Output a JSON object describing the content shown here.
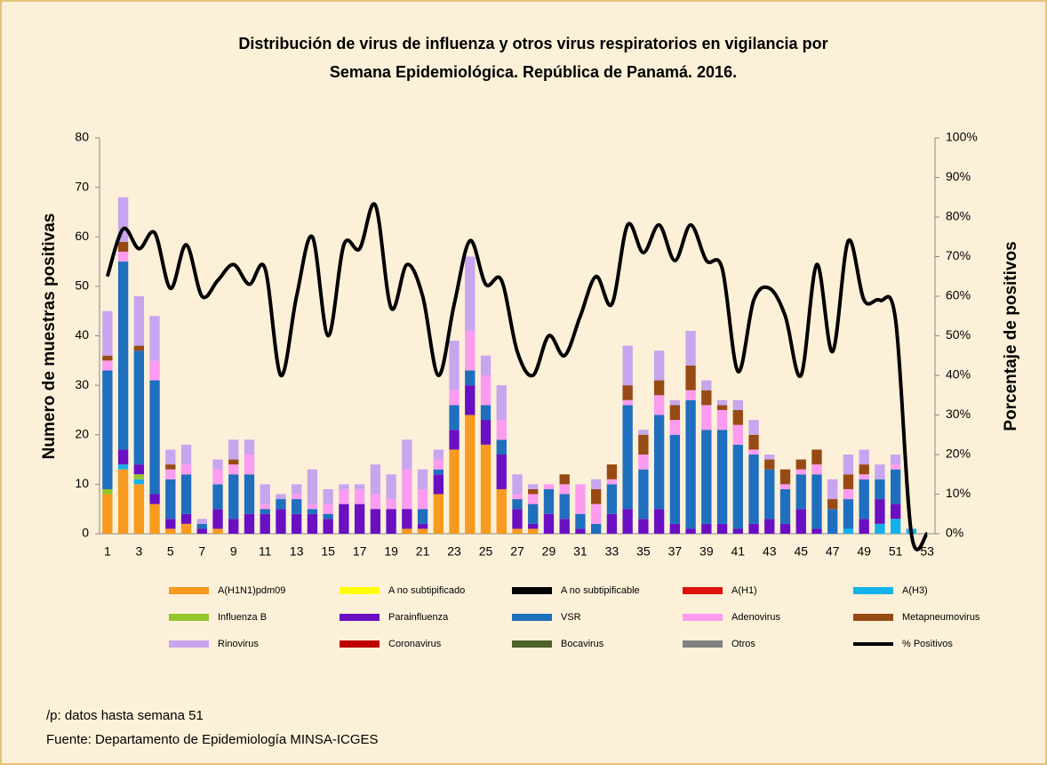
{
  "chart_data": {
    "type": "bar",
    "stacked": true,
    "title": "Distribución de virus de influenza y otros virus respiratorios en vigilancia por",
    "subtitle": "Semana Epidemiológica. República de Panamá. 2016.",
    "y_label": "Numero de muestras positivas",
    "y2_label": "Porcentaje de positivos",
    "notes": [
      "/p: datos hasta semana 51",
      "Fuente: Departamento de Epidemiología MINSA-ICGES"
    ],
    "categories": [
      1,
      null,
      3,
      null,
      5,
      null,
      7,
      null,
      9,
      null,
      11,
      null,
      13,
      null,
      15,
      null,
      17,
      null,
      19,
      null,
      21,
      null,
      23,
      null,
      25,
      null,
      27,
      null,
      29,
      null,
      31,
      null,
      33,
      null,
      35,
      null,
      37,
      null,
      39,
      null,
      41,
      null,
      43,
      null,
      45,
      null,
      47,
      null,
      49,
      null,
      51,
      null,
      53
    ],
    "ylim": [
      0,
      80
    ],
    "yticks": [
      0,
      10,
      20,
      30,
      40,
      50,
      60,
      70,
      80
    ],
    "y2lim": [
      0,
      100
    ],
    "y2ticks": [
      {
        "value": 0,
        "label": "0%"
      },
      {
        "value": 10,
        "label": "10%"
      },
      {
        "value": 20,
        "label": "20%"
      },
      {
        "value": 30,
        "label": "30%"
      },
      {
        "value": 40,
        "label": "40%"
      },
      {
        "value": 50,
        "label": "50%"
      },
      {
        "value": 60,
        "label": "60%"
      },
      {
        "value": 70,
        "label": "70%"
      },
      {
        "value": 80,
        "label": "80%"
      },
      {
        "value": 90,
        "label": "90%"
      },
      {
        "value": 100,
        "label": "100%"
      }
    ],
    "legend_position": "bottom",
    "series": [
      {
        "name": "A(H1N1)pdm09",
        "color": "#f79a1e",
        "values": [
          8,
          13,
          10,
          6,
          1,
          2,
          0,
          1,
          0,
          0,
          0,
          0,
          0,
          0,
          0,
          0,
          0,
          0,
          0,
          1,
          1,
          8,
          17,
          24,
          18,
          9,
          1,
          1,
          0,
          0,
          0,
          0,
          0,
          0,
          0,
          0,
          0,
          0,
          0,
          0,
          0,
          0,
          0,
          0,
          0,
          0,
          0,
          0,
          0,
          0,
          0,
          0,
          0
        ]
      },
      {
        "name": "A no subtipificado",
        "color": "#ffff00",
        "values": [
          0,
          0,
          0,
          0,
          0,
          0,
          0,
          0,
          0,
          0,
          0,
          0,
          0,
          0,
          0,
          0,
          0,
          0,
          0,
          0,
          0,
          0,
          0,
          0,
          0,
          0,
          0,
          0,
          0,
          0,
          0,
          0,
          0,
          0,
          0,
          0,
          0,
          0,
          0,
          0,
          0,
          0,
          0,
          0,
          0,
          0,
          0,
          0,
          0,
          0,
          0,
          0,
          0
        ]
      },
      {
        "name": "A no subtipificable",
        "color": "#000000",
        "values": [
          0,
          0,
          0,
          0,
          0,
          0,
          0,
          0,
          0,
          0,
          0,
          0,
          0,
          0,
          0,
          0,
          0,
          0,
          0,
          0,
          0,
          0,
          0,
          0,
          0,
          0,
          0,
          0,
          0,
          0,
          0,
          0,
          0,
          0,
          0,
          0,
          0,
          0,
          0,
          0,
          0,
          0,
          0,
          0,
          0,
          0,
          0,
          0,
          0,
          0,
          0,
          0,
          0
        ]
      },
      {
        "name": "A(H1)",
        "color": "#e0120b",
        "values": [
          0,
          0,
          0,
          0,
          0,
          0,
          0,
          0,
          0,
          0,
          0,
          0,
          0,
          0,
          0,
          0,
          0,
          0,
          0,
          0,
          0,
          0,
          0,
          0,
          0,
          0,
          0,
          0,
          0,
          0,
          0,
          0,
          0,
          0,
          0,
          0,
          0,
          0,
          0,
          0,
          0,
          0,
          0,
          0,
          0,
          0,
          0,
          0,
          0,
          0,
          0,
          0,
          0
        ]
      },
      {
        "name": "A(H3)",
        "color": "#13b1eb",
        "values": [
          0,
          1,
          1,
          0,
          0,
          0,
          0,
          0,
          0,
          0,
          0,
          0,
          0,
          0,
          0,
          0,
          0,
          0,
          0,
          0,
          0,
          0,
          0,
          0,
          0,
          0,
          0,
          0,
          0,
          0,
          0,
          0,
          0,
          0,
          0,
          0,
          0,
          0,
          0,
          0,
          0,
          0,
          0,
          0,
          0,
          0,
          0,
          1,
          0,
          2,
          3,
          1,
          0
        ]
      },
      {
        "name": "Influenza  B",
        "color": "#92c72b",
        "values": [
          1,
          0,
          1,
          0,
          0,
          0,
          0,
          0,
          0,
          0,
          0,
          0,
          0,
          0,
          0,
          0,
          0,
          0,
          0,
          0,
          0,
          0,
          0,
          0,
          0,
          0,
          0,
          0,
          0,
          0,
          0,
          0,
          0,
          0,
          0,
          0,
          0,
          0,
          0,
          0,
          0,
          0,
          0,
          0,
          0,
          0,
          0,
          0,
          0,
          0,
          0,
          0,
          0
        ]
      },
      {
        "name": "Parainfluenza",
        "color": "#6a0fc4",
        "values": [
          0,
          3,
          2,
          2,
          2,
          2,
          1,
          4,
          3,
          4,
          4,
          5,
          4,
          4,
          3,
          6,
          6,
          5,
          5,
          4,
          1,
          4,
          4,
          6,
          5,
          7,
          4,
          1,
          4,
          3,
          1,
          0,
          4,
          5,
          3,
          5,
          2,
          1,
          2,
          2,
          1,
          2,
          3,
          2,
          5,
          1,
          0,
          0,
          3,
          5,
          3,
          0,
          0
        ]
      },
      {
        "name": "VSR",
        "color": "#1f6fbf",
        "values": [
          24,
          38,
          23,
          23,
          8,
          8,
          1,
          5,
          9,
          8,
          1,
          2,
          3,
          1,
          1,
          0,
          0,
          0,
          0,
          0,
          3,
          1,
          5,
          3,
          3,
          3,
          2,
          4,
          5,
          5,
          3,
          2,
          6,
          21,
          10,
          19,
          18,
          26,
          19,
          19,
          17,
          14,
          10,
          7,
          7,
          11,
          5,
          6,
          8,
          4,
          7,
          0,
          0
        ]
      },
      {
        "name": "Adenovirus",
        "color": "#fb9cf0",
        "values": [
          2,
          2,
          0,
          4,
          2,
          2,
          0,
          3,
          2,
          4,
          1,
          0,
          1,
          1,
          2,
          3,
          3,
          3,
          2,
          8,
          4,
          2,
          3,
          8,
          6,
          4,
          1,
          2,
          1,
          2,
          6,
          4,
          1,
          1,
          3,
          4,
          3,
          2,
          5,
          4,
          4,
          1,
          0,
          1,
          1,
          2,
          0,
          2,
          1,
          0,
          1,
          0,
          0
        ]
      },
      {
        "name": "Metapneumovirus",
        "color": "#984a14",
        "values": [
          1,
          2,
          1,
          0,
          1,
          0,
          0,
          0,
          1,
          0,
          0,
          0,
          0,
          0,
          0,
          0,
          0,
          0,
          0,
          0,
          0,
          0,
          0,
          0,
          0,
          0,
          0,
          1,
          0,
          2,
          0,
          3,
          3,
          3,
          4,
          3,
          3,
          5,
          3,
          1,
          3,
          3,
          2,
          3,
          2,
          3,
          2,
          3,
          2,
          0,
          0,
          0,
          0
        ]
      },
      {
        "name": "Rinovirus",
        "color": "#c7a5ef",
        "values": [
          9,
          9,
          10,
          9,
          3,
          4,
          1,
          2,
          4,
          3,
          4,
          1,
          2,
          7,
          3,
          1,
          1,
          6,
          5,
          6,
          4,
          2,
          10,
          15,
          4,
          7,
          4,
          1,
          0,
          0,
          0,
          2,
          0,
          8,
          1,
          6,
          1,
          7,
          2,
          1,
          2,
          3,
          1,
          0,
          0,
          0,
          4,
          4,
          3,
          3,
          2,
          0,
          0
        ]
      },
      {
        "name": "Coronavirus",
        "color": "#c00000",
        "values": [
          0,
          0,
          0,
          0,
          0,
          0,
          0,
          0,
          0,
          0,
          0,
          0,
          0,
          0,
          0,
          0,
          0,
          0,
          0,
          0,
          0,
          0,
          0,
          0,
          0,
          0,
          0,
          0,
          0,
          0,
          0,
          0,
          0,
          0,
          0,
          0,
          0,
          0,
          0,
          0,
          0,
          0,
          0,
          0,
          0,
          0,
          0,
          0,
          0,
          0,
          0,
          0,
          0
        ]
      },
      {
        "name": "Bocavirus",
        "color": "#4f6228",
        "values": [
          0,
          0,
          0,
          0,
          0,
          0,
          0,
          0,
          0,
          0,
          0,
          0,
          0,
          0,
          0,
          0,
          0,
          0,
          0,
          0,
          0,
          0,
          0,
          0,
          0,
          0,
          0,
          0,
          0,
          0,
          0,
          0,
          0,
          0,
          0,
          0,
          0,
          0,
          0,
          0,
          0,
          0,
          0,
          0,
          0,
          0,
          0,
          0,
          0,
          0,
          0,
          0,
          0
        ]
      },
      {
        "name": "Otros",
        "color": "#808080",
        "values": [
          0,
          0,
          0,
          0,
          0,
          0,
          0,
          0,
          0,
          0,
          0,
          0,
          0,
          0,
          0,
          0,
          0,
          0,
          0,
          0,
          0,
          0,
          0,
          0,
          0,
          0,
          0,
          0,
          0,
          0,
          0,
          0,
          0,
          0,
          0,
          0,
          0,
          0,
          0,
          0,
          0,
          0,
          0,
          0,
          0,
          0,
          0,
          0,
          0,
          0,
          0,
          0,
          0
        ]
      },
      {
        "name": "% Positivos",
        "color": "#000000",
        "type": "line",
        "axis": "y2",
        "values": [
          65,
          77,
          72,
          76,
          62,
          73,
          60,
          64,
          68,
          63,
          67,
          40,
          60,
          75,
          50,
          73,
          72,
          83,
          57,
          68,
          60,
          40,
          58,
          74,
          63,
          64,
          46,
          40,
          50,
          45,
          55,
          65,
          58,
          78,
          71,
          78,
          69,
          78,
          69,
          67,
          41,
          59,
          62,
          55,
          40,
          68,
          46,
          74,
          59,
          59,
          54,
          0,
          0
        ]
      }
    ]
  }
}
